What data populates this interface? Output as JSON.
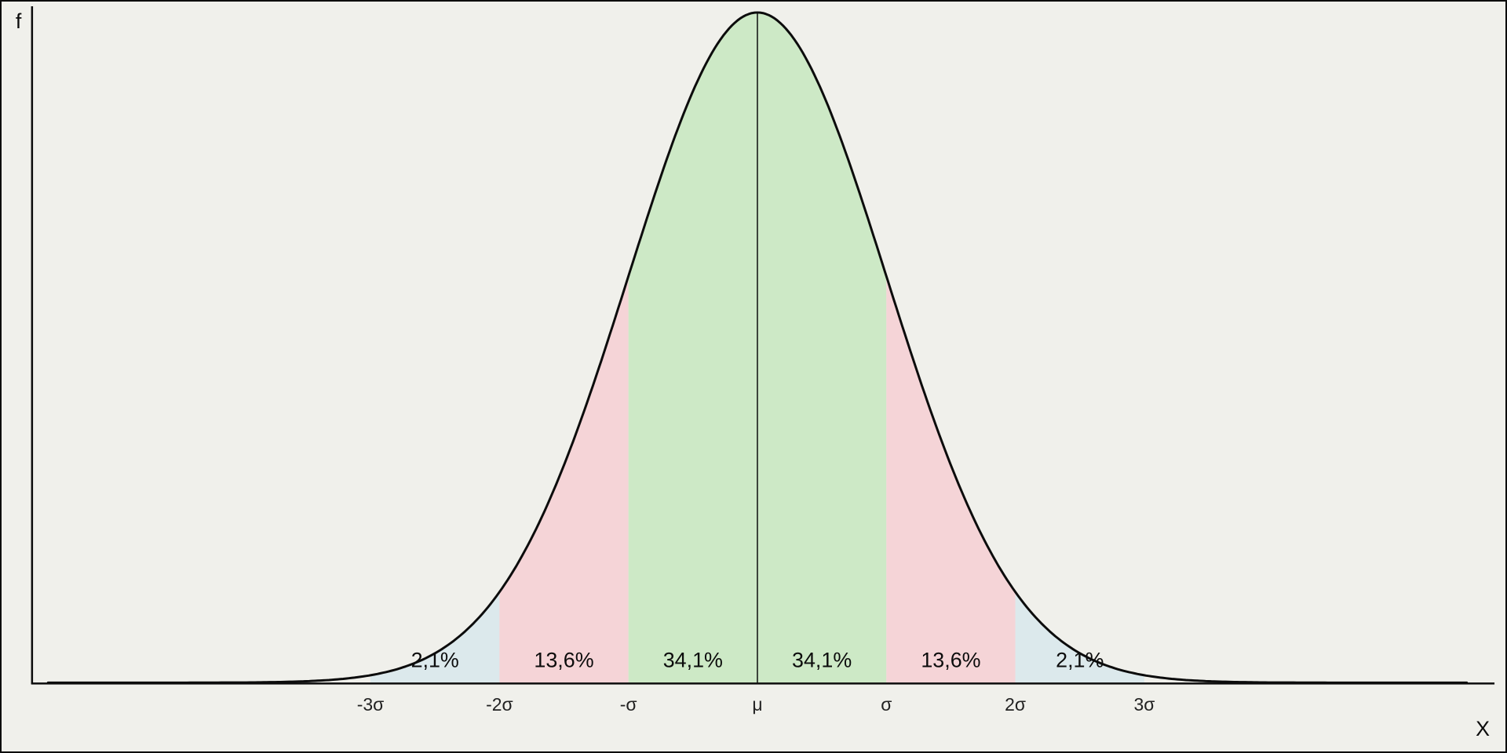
{
  "chart_data": {
    "type": "area",
    "description": "Normal (Gaussian) distribution curve with standard-deviation bands shaded and labeled with their probability percentages",
    "xlabel": "X",
    "ylabel": "f",
    "x_tick_labels": [
      "-3σ",
      "-2σ",
      "-σ",
      "μ",
      "σ",
      "2σ",
      "3σ"
    ],
    "x_tick_sigmas": [
      -3,
      -2,
      -1,
      0,
      1,
      2,
      3
    ],
    "x_range_sigma": [
      -5.5,
      5.5
    ],
    "mean_line": true,
    "grid": false,
    "legend": "none",
    "curve_color": "#0c0c0c",
    "axis_color": "#0c0c0c",
    "mean_line_color": "#0c0c0c",
    "background_color": "#f0f0eb",
    "regions": [
      {
        "from_sigma": -3,
        "to_sigma": -2,
        "label": "2,1%",
        "value_percent": 2.1,
        "color": "#dce9ec"
      },
      {
        "from_sigma": -2,
        "to_sigma": -1,
        "label": "13,6%",
        "value_percent": 13.6,
        "color": "#f5d4d7"
      },
      {
        "from_sigma": -1,
        "to_sigma": 0,
        "label": "34,1%",
        "value_percent": 34.1,
        "color": "#cde9c6"
      },
      {
        "from_sigma": 0,
        "to_sigma": 1,
        "label": "34,1%",
        "value_percent": 34.1,
        "color": "#cde9c6"
      },
      {
        "from_sigma": 1,
        "to_sigma": 2,
        "label": "13,6%",
        "value_percent": 13.6,
        "color": "#f5d4d7"
      },
      {
        "from_sigma": 2,
        "to_sigma": 3,
        "label": "2,1%",
        "value_percent": 2.1,
        "color": "#dce9ec"
      }
    ]
  }
}
